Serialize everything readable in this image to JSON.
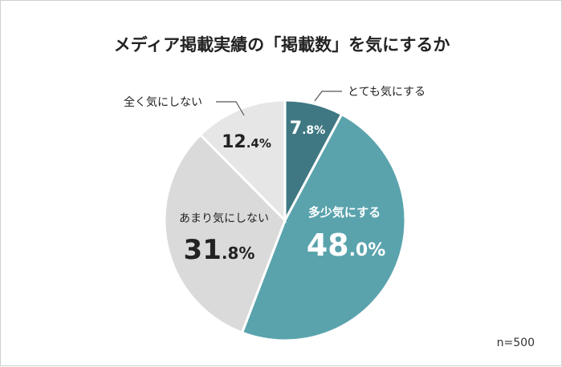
{
  "chart_data": {
    "type": "pie",
    "title": "メディア掲載実績の「掲載数」を気にするか",
    "categories": [
      "とても気にする",
      "多少気にする",
      "あまり気にしない",
      "全く気にしない"
    ],
    "values": [
      7.8,
      48.0,
      31.8,
      12.4
    ],
    "value_labels": [
      {
        "int": "7",
        "dec": ".8%"
      },
      {
        "int": "48",
        "dec": ".0%"
      },
      {
        "int": "31",
        "dec": ".8%"
      },
      {
        "int": "12",
        "dec": ".4%"
      }
    ],
    "colors": [
      "#3f7883",
      "#5aa3ad",
      "#dadada",
      "#e6e6e6"
    ],
    "start": "12 o'clock",
    "direction": "clockwise"
  },
  "note": "n=500"
}
